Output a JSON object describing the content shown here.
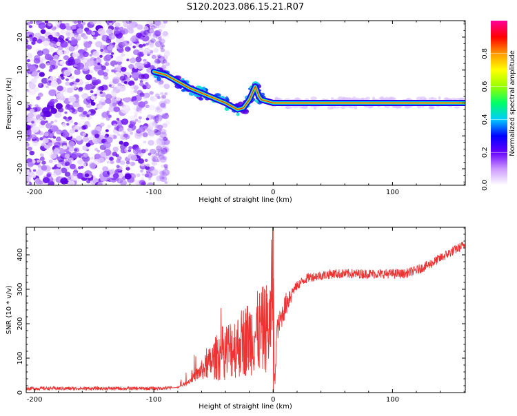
{
  "page": {
    "title": "S120.2023.086.15.21.R07"
  },
  "chart_data": [
    {
      "id": "spectrogram",
      "type": "heatmap",
      "title": "S120.2023.086.15.21.R07",
      "xlabel": "Height of straight line (km)",
      "ylabel": "Frequency (Hz)",
      "xlim": [
        -207,
        161
      ],
      "ylim": [
        -25,
        25
      ],
      "x_ticks": [
        -200,
        -100,
        0,
        100
      ],
      "y_ticks": [
        -20,
        -10,
        0,
        10,
        20
      ],
      "x_tick_labels": [
        "-200",
        "-100",
        "0",
        "100"
      ],
      "y_tick_labels": [
        "-20",
        "-10",
        "0",
        "10",
        "20"
      ],
      "noise_region": {
        "x_range": [
          -207,
          -92
        ],
        "y_range": [
          -25,
          25
        ]
      },
      "signal_trace": {
        "x": [
          -100,
          -90,
          -80,
          -70,
          -60,
          -50,
          -40,
          -30,
          -25,
          -20,
          -15,
          -12,
          -10,
          -5,
          0,
          50,
          100,
          161
        ],
        "y": [
          9.5,
          8.5,
          6.5,
          4.5,
          3,
          1.5,
          0,
          -2,
          -1.5,
          1,
          5,
          2,
          1,
          0.5,
          0,
          0,
          0,
          0
        ]
      },
      "colorbar": {
        "label": "Normalized spectral amplitude",
        "range": [
          0,
          1
        ],
        "ticks": [
          0.0,
          0.2,
          0.4,
          0.6,
          0.8
        ],
        "tick_labels": [
          "0.0",
          "0.2",
          "0.4",
          "0.6",
          "0.8"
        ],
        "colors": [
          "#ffffff",
          "#cc99ff",
          "#6600ff",
          "#0000ff",
          "#00ccff",
          "#00ff66",
          "#99ff00",
          "#ffff00",
          "#ff9900",
          "#ff0000",
          "#ff0099"
        ]
      },
      "grid": false
    },
    {
      "id": "snr",
      "type": "line",
      "xlabel": "Height of straight line (km)",
      "ylabel": "SNR (10 * v/v)",
      "xlim": [
        -207,
        161
      ],
      "ylim": [
        0,
        480
      ],
      "x_ticks": [
        -200,
        -100,
        0,
        100
      ],
      "y_ticks": [
        0,
        100,
        200,
        300,
        400
      ],
      "x_tick_labels": [
        "-200",
        "-100",
        "0",
        "100"
      ],
      "y_tick_labels": [
        "0",
        "100",
        "200",
        "300",
        "400"
      ],
      "series": [
        {
          "color": "#ee3333",
          "x": [
            -207,
            -180,
            -150,
            -120,
            -100,
            -90,
            -80,
            -75,
            -70,
            -65,
            -60,
            -55,
            -50,
            -45,
            -40,
            -35,
            -30,
            -25,
            -20,
            -15,
            -10,
            -5,
            -2,
            0,
            1,
            3,
            5,
            10,
            15,
            20,
            25,
            30,
            40,
            50,
            60,
            70,
            80,
            90,
            100,
            110,
            120,
            130,
            140,
            150,
            161
          ],
          "y": [
            12,
            12,
            12,
            12,
            12,
            13,
            15,
            22,
            35,
            50,
            65,
            80,
            95,
            110,
            120,
            130,
            135,
            150,
            160,
            170,
            180,
            190,
            200,
            460,
            0,
            180,
            200,
            250,
            290,
            310,
            325,
            335,
            340,
            345,
            345,
            345,
            345,
            345,
            345,
            345,
            355,
            370,
            390,
            410,
            430
          ]
        }
      ],
      "grid": false
    }
  ]
}
